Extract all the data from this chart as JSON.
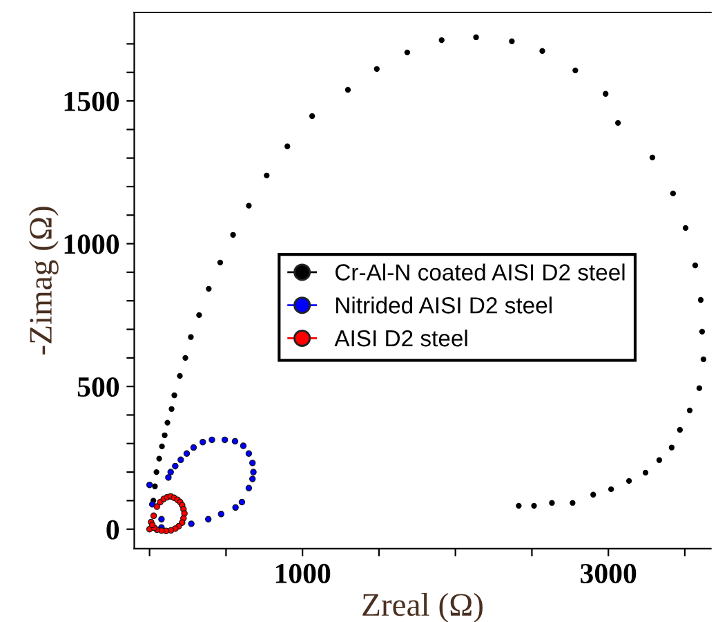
{
  "chart_data": {
    "type": "scatter",
    "xlabel": "Zreal (Ω)",
    "ylabel": "-Zimag (Ω)",
    "xlim": [
      -100,
      3670
    ],
    "ylim": [
      -68,
      1810
    ],
    "xticks": [
      {
        "value": 0,
        "label": null
      },
      {
        "value": 500,
        "label": null
      },
      1000,
      {
        "value": 1500,
        "label": null
      },
      {
        "value": 2000,
        "label": null
      },
      {
        "value": 2500,
        "label": null
      },
      3000,
      {
        "value": 3500,
        "label": null
      }
    ],
    "yticks": [
      0,
      {
        "value": 100,
        "label": null
      },
      {
        "value": 200,
        "label": null
      },
      {
        "value": 300,
        "label": null
      },
      {
        "value": 400,
        "label": null
      },
      500,
      {
        "value": 600,
        "label": null
      },
      {
        "value": 700,
        "label": null
      },
      {
        "value": 800,
        "label": null
      },
      {
        "value": 900,
        "label": null
      },
      1000,
      {
        "value": 1100,
        "label": null
      },
      {
        "value": 1200,
        "label": null
      },
      {
        "value": 1300,
        "label": null
      },
      {
        "value": 1400,
        "label": null
      },
      1500,
      {
        "value": 1600,
        "label": null
      },
      {
        "value": 1700,
        "label": null
      }
    ],
    "marker": "circle",
    "grid": false,
    "legend": "center",
    "series": [
      {
        "name": "Cr-Al-N coated AISI D2 steel",
        "color": "#000000",
        "x": [
          25,
          35,
          45,
          63,
          81,
          99,
          117,
          144,
          162,
          198,
          234,
          270,
          324,
          387,
          462,
          546,
          649,
          766,
          901,
          1063,
          1297,
          1486,
          1685,
          1910,
          2135,
          2369,
          2568,
          2784,
          2982,
          3063,
          3288,
          3423,
          3505,
          3568,
          3604,
          3613,
          3622,
          3595,
          3532,
          3468,
          3414,
          3333,
          3243,
          3135,
          3018,
          2901,
          2766,
          2631,
          2514,
          2414
        ],
        "values": [
          100,
          150,
          200,
          247,
          290,
          329,
          373,
          421,
          469,
          537,
          600,
          673,
          750,
          842,
          934,
          1031,
          1133,
          1239,
          1341,
          1447,
          1539,
          1612,
          1670,
          1713,
          1723,
          1709,
          1675,
          1607,
          1525,
          1423,
          1302,
          1176,
          1055,
          924,
          803,
          692,
          595,
          494,
          416,
          348,
          286,
          242,
          198,
          169,
          140,
          121,
          92,
          92,
          82,
          82
        ]
      },
      {
        "name": "Nitrided AISI D2 steel",
        "color": "#0000ff",
        "x": [
          0,
          18,
          78,
          78,
          273,
          384,
          468,
          562,
          604,
          649,
          673,
          679,
          673,
          649,
          613,
          559,
          492,
          408,
          348,
          288,
          243,
          204,
          168,
          138,
          123
        ],
        "values": [
          155,
          87,
          35,
          6,
          19,
          35,
          53,
          76,
          95,
          144,
          176,
          200,
          232,
          265,
          292,
          308,
          313,
          313,
          305,
          286,
          265,
          243,
          221,
          200,
          181
        ]
      },
      {
        "name": "AISI D2 steel",
        "color": "#ff0000",
        "x": [
          0,
          10,
          27,
          48,
          70,
          93,
          115,
          138,
          160,
          183,
          200,
          213,
          222,
          228,
          222,
          213,
          190,
          168,
          140,
          108,
          78,
          48,
          30,
          18
        ],
        "values": [
          0,
          25,
          47,
          79,
          95,
          106,
          112,
          115,
          110,
          103,
          95,
          84,
          70,
          55,
          38,
          23,
          10,
          2,
          -4,
          -6,
          -5,
          -2,
          5,
          15
        ]
      }
    ]
  }
}
